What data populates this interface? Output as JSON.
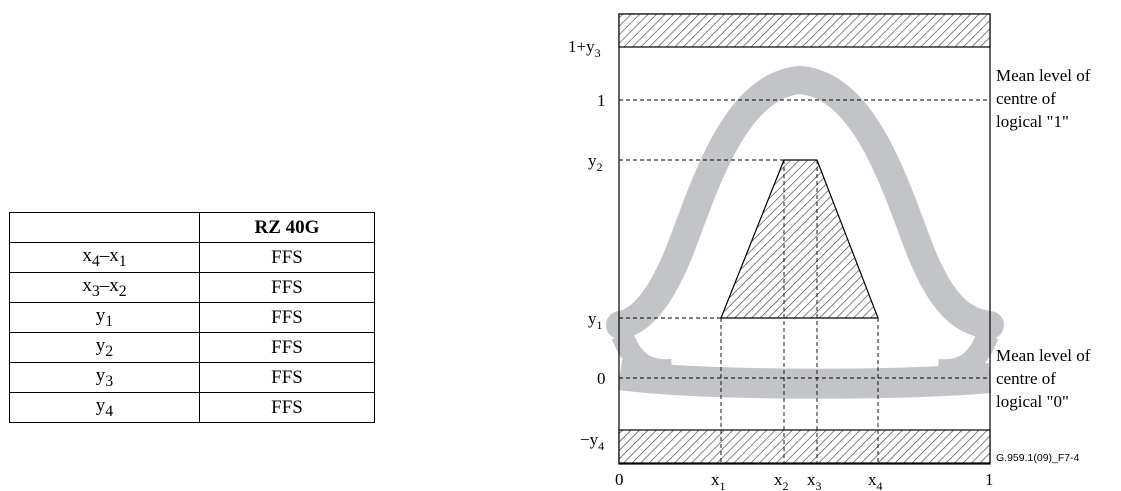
{
  "table": {
    "header": [
      "",
      "RZ 40G"
    ],
    "rows": [
      {
        "param": "x4–x1",
        "value": "FFS"
      },
      {
        "param": "x3–x2",
        "value": "FFS"
      },
      {
        "param": "y1",
        "value": "FFS"
      },
      {
        "param": "y2",
        "value": "FFS"
      },
      {
        "param": "y3",
        "value": "FFS"
      },
      {
        "param": "y4",
        "value": "FFS"
      }
    ]
  },
  "diagram": {
    "y_labels": {
      "one_plus_y3": "1+y3",
      "one": "1",
      "y2": "y2",
      "y1": "y1",
      "zero": "0",
      "minus_y4": "−y4"
    },
    "x_labels": {
      "zero": "0",
      "x1": "x1",
      "x2": "x2",
      "x3": "x3",
      "x4": "x4",
      "one": "1"
    },
    "right_labels": {
      "mean_one": [
        "Mean level of",
        "centre of",
        "logical \"1\""
      ],
      "mean_zero": [
        "Mean level of",
        "centre of",
        "logical \"0\""
      ]
    },
    "figure_ref": "G.959.1(09)_F7-4"
  }
}
